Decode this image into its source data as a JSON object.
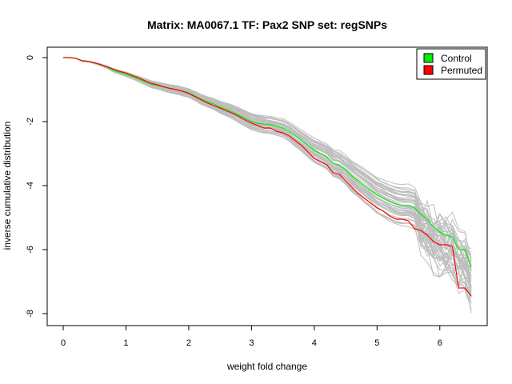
{
  "chart_data": {
    "type": "line",
    "title": "Matrix: MA0067.1 TF: Pax2 SNP set: regSNPs",
    "xlabel": "weight fold change",
    "ylabel": "inverse cumulative distribution",
    "xlim": [
      0,
      6.5
    ],
    "ylim": [
      -8,
      0
    ],
    "x_ticks": [
      0,
      1,
      2,
      3,
      4,
      5,
      6
    ],
    "y_ticks": [
      0,
      -2,
      -4,
      -6,
      -8
    ],
    "grid": false,
    "legend_position": "top-right",
    "legend": [
      {
        "label": "Control",
        "color": "#00ee00"
      },
      {
        "label": "Permuted",
        "color": "#ff0000"
      }
    ],
    "background_color": "#bebebe",
    "series": [
      {
        "name": "Control",
        "color": "#00ee00",
        "x": [
          0,
          0.1,
          0.2,
          0.3,
          0.4,
          0.5,
          0.6,
          0.7,
          0.8,
          0.9,
          1.0,
          1.1,
          1.2,
          1.3,
          1.4,
          1.5,
          1.6,
          1.7,
          1.8,
          1.9,
          2.0,
          2.1,
          2.2,
          2.3,
          2.4,
          2.5,
          2.6,
          2.7,
          2.8,
          2.9,
          3.0,
          3.1,
          3.2,
          3.3,
          3.4,
          3.5,
          3.6,
          3.7,
          3.8,
          3.9,
          4.0,
          4.1,
          4.2,
          4.3,
          4.4,
          4.5,
          4.6,
          4.7,
          4.8,
          4.9,
          5.0,
          5.1,
          5.2,
          5.3,
          5.4,
          5.5,
          5.6,
          5.7,
          5.8,
          5.9,
          6.0,
          6.1,
          6.2,
          6.3,
          6.4,
          6.5
        ],
        "y": [
          0,
          0,
          -0.02,
          -0.1,
          -0.12,
          -0.17,
          -0.23,
          -0.3,
          -0.4,
          -0.46,
          -0.52,
          -0.59,
          -0.67,
          -0.75,
          -0.83,
          -0.87,
          -0.92,
          -0.97,
          -1.0,
          -1.05,
          -1.1,
          -1.2,
          -1.3,
          -1.38,
          -1.45,
          -1.55,
          -1.62,
          -1.7,
          -1.8,
          -1.9,
          -2.0,
          -2.05,
          -2.08,
          -2.1,
          -2.15,
          -2.2,
          -2.3,
          -2.45,
          -2.6,
          -2.75,
          -2.9,
          -3.0,
          -3.1,
          -3.3,
          -3.35,
          -3.5,
          -3.7,
          -3.85,
          -4.0,
          -4.15,
          -4.3,
          -4.4,
          -4.5,
          -4.58,
          -4.62,
          -4.62,
          -4.7,
          -4.9,
          -5.05,
          -5.3,
          -5.45,
          -5.55,
          -5.6,
          -6.0,
          -6.0,
          -6.55
        ]
      },
      {
        "name": "Permuted",
        "color": "#ff0000",
        "x": [
          0,
          0.1,
          0.2,
          0.3,
          0.4,
          0.5,
          0.6,
          0.7,
          0.8,
          0.9,
          1.0,
          1.1,
          1.2,
          1.3,
          1.4,
          1.5,
          1.6,
          1.7,
          1.8,
          1.9,
          2.0,
          2.1,
          2.2,
          2.3,
          2.4,
          2.5,
          2.6,
          2.7,
          2.8,
          2.9,
          3.0,
          3.1,
          3.2,
          3.3,
          3.4,
          3.5,
          3.6,
          3.7,
          3.8,
          3.9,
          4.0,
          4.1,
          4.2,
          4.3,
          4.4,
          4.5,
          4.6,
          4.7,
          4.8,
          4.9,
          5.0,
          5.1,
          5.2,
          5.3,
          5.4,
          5.5,
          5.6,
          5.7,
          5.8,
          5.9,
          6.0,
          6.1,
          6.2,
          6.3,
          6.4,
          6.5
        ],
        "y": [
          0,
          0,
          -0.02,
          -0.1,
          -0.12,
          -0.16,
          -0.22,
          -0.29,
          -0.36,
          -0.43,
          -0.48,
          -0.56,
          -0.63,
          -0.72,
          -0.8,
          -0.85,
          -0.91,
          -0.96,
          -1.0,
          -1.05,
          -1.12,
          -1.22,
          -1.32,
          -1.42,
          -1.5,
          -1.58,
          -1.66,
          -1.74,
          -1.84,
          -1.95,
          -2.05,
          -2.12,
          -2.2,
          -2.2,
          -2.3,
          -2.35,
          -2.45,
          -2.6,
          -2.75,
          -2.95,
          -3.15,
          -3.25,
          -3.35,
          -3.6,
          -3.65,
          -3.85,
          -4.05,
          -4.25,
          -4.4,
          -4.55,
          -4.7,
          -4.8,
          -4.95,
          -5.05,
          -5.05,
          -5.1,
          -5.35,
          -5.4,
          -5.55,
          -5.75,
          -5.85,
          -5.85,
          -5.9,
          -7.2,
          -7.2,
          -7.45
        ]
      }
    ]
  }
}
